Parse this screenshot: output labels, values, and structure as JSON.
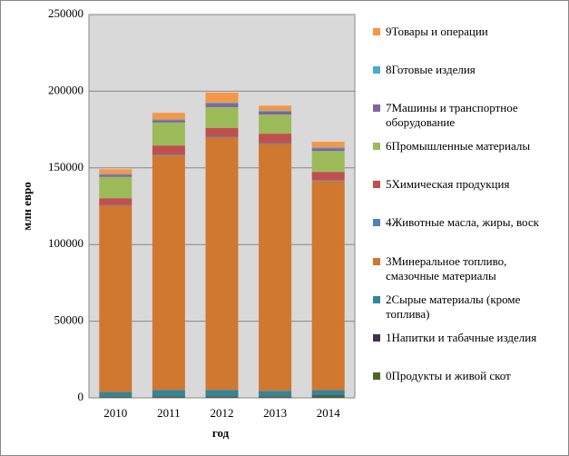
{
  "chart_data": {
    "type": "bar",
    "stacked": true,
    "y_label": "млн евро",
    "x_label": "год",
    "categories": [
      "2010",
      "2011",
      "2012",
      "2013",
      "2014"
    ],
    "ylim": [
      0,
      250000
    ],
    "yticks": [
      0,
      50000,
      100000,
      150000,
      200000,
      250000
    ],
    "grid": true,
    "series": [
      {
        "name": "0Продукты и живой скот",
        "color": "#4f6228",
        "values": [
          500,
          800,
          800,
          800,
          1200
        ]
      },
      {
        "name": "1Напитки и табачные изделия",
        "color": "#403152",
        "values": [
          300,
          300,
          300,
          300,
          300
        ]
      },
      {
        "name": "2Сырые материалы (кроме топлива)",
        "color": "#31859c",
        "values": [
          3000,
          4000,
          4000,
          3500,
          3500
        ]
      },
      {
        "name": "3Минеральное топливо, смазочные материалы",
        "color": "#d0782f",
        "values": [
          121500,
          153000,
          164500,
          161000,
          136500
        ]
      },
      {
        "name": "4Животные масла, жиры, воск",
        "color": "#4f81bd",
        "values": [
          400,
          500,
          500,
          500,
          500
        ]
      },
      {
        "name": "5Химическая продукция",
        "color": "#c0504d",
        "values": [
          4500,
          6000,
          6000,
          6200,
          5400
        ]
      },
      {
        "name": "6Промышленные материалы",
        "color": "#9bbb59",
        "values": [
          13900,
          15000,
          13500,
          12500,
          13600
        ]
      },
      {
        "name": "7Машины и транспортное оборудование",
        "color": "#8064a2",
        "values": [
          1500,
          1500,
          2300,
          2000,
          1800
        ]
      },
      {
        "name": "8Готовые изделия",
        "color": "#4bacc6",
        "values": [
          500,
          500,
          700,
          600,
          600
        ]
      },
      {
        "name": "9Товары и операции",
        "color": "#f79646",
        "values": [
          3000,
          4300,
          6500,
          3200,
          3600
        ]
      }
    ]
  }
}
